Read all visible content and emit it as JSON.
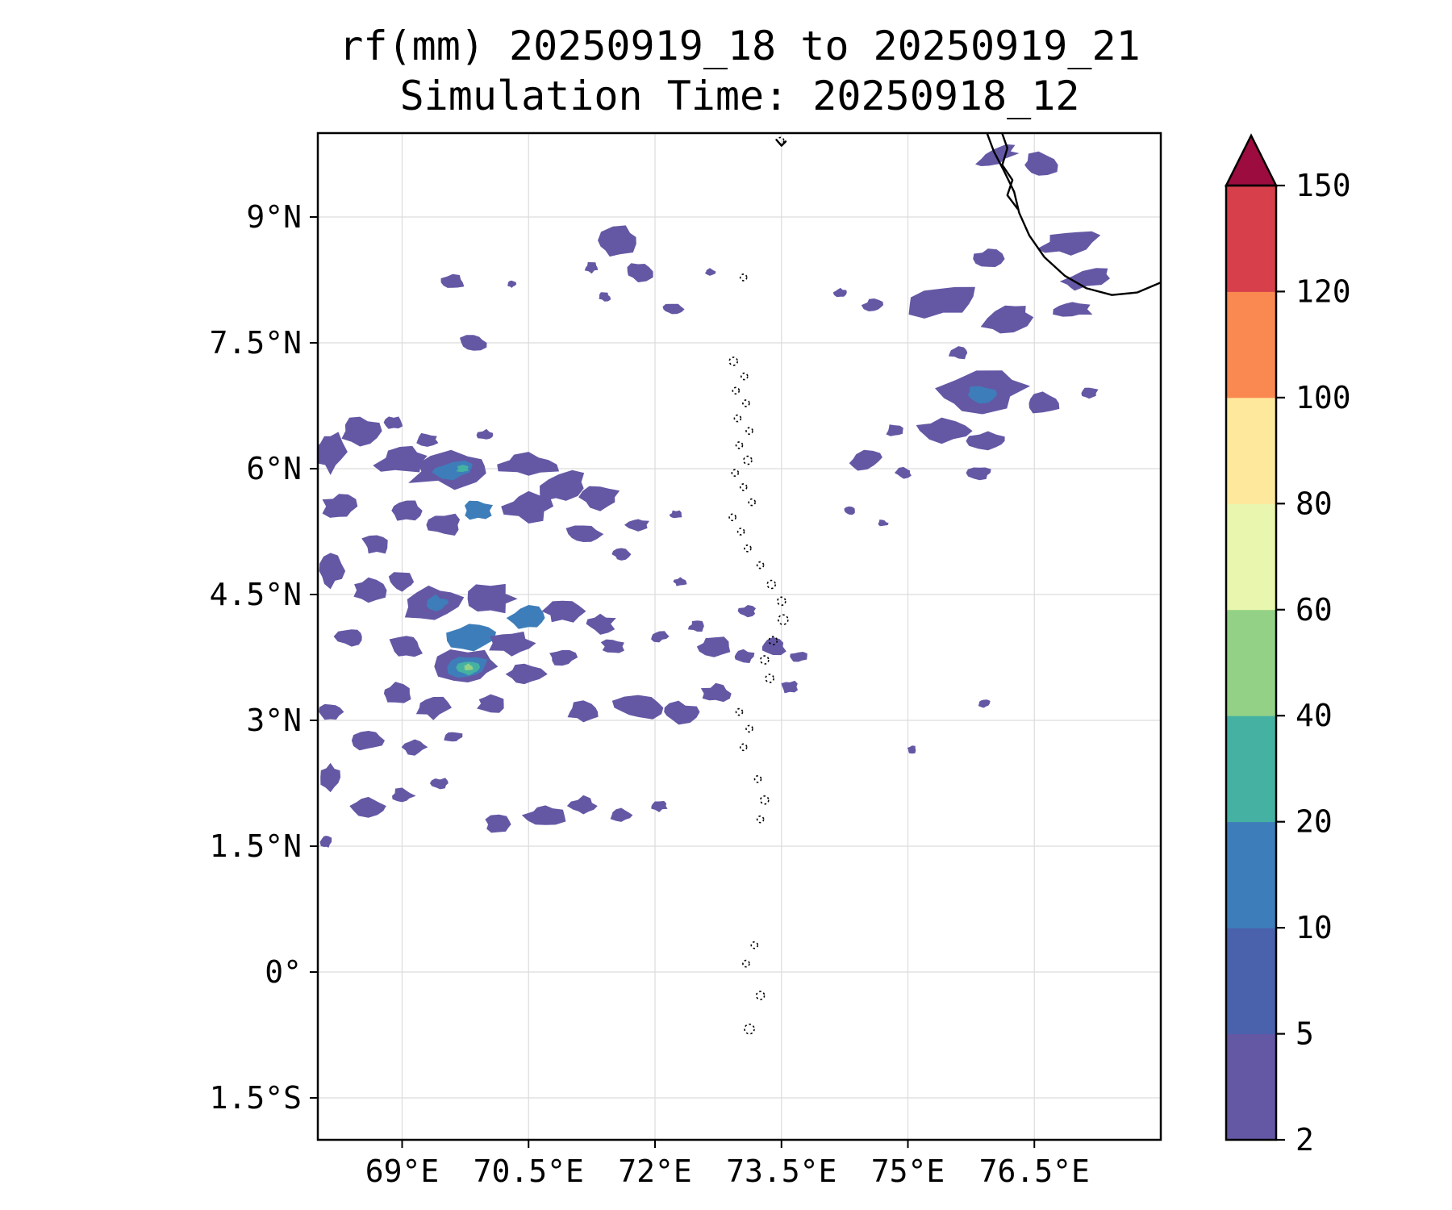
{
  "title_line1": "rf(mm) 20250919_18 to 20250919_21",
  "title_line2": "Simulation Time: 20250918_12",
  "chart_data": {
    "type": "heatmap",
    "variable": "rf",
    "units": "mm",
    "valid_period": "20250919_18 to 20250919_21",
    "simulation_time": "20250918_12",
    "grid": true,
    "x_axis": {
      "range": [
        68,
        78
      ],
      "ticks": [
        69,
        70.5,
        72,
        73.5,
        75,
        76.5
      ],
      "tick_labels": [
        "69°E",
        "70.5°E",
        "72°E",
        "73.5°E",
        "75°E",
        "76.5°E"
      ]
    },
    "y_axis": {
      "range": [
        -2,
        10
      ],
      "ticks": [
        9,
        7.5,
        6,
        4.5,
        3,
        1.5,
        0,
        -1.5
      ],
      "tick_labels": [
        "9°N",
        "7.5°N",
        "6°N",
        "4.5°N",
        "3°N",
        "1.5°N",
        "0°",
        "1.5°S"
      ]
    },
    "colorbar": {
      "levels": [
        2,
        5,
        10,
        20,
        40,
        60,
        80,
        100,
        120,
        150
      ],
      "tick_labels": [
        "2",
        "5",
        "10",
        "20",
        "40",
        "60",
        "80",
        "100",
        "120",
        "150"
      ],
      "colors": [
        "#6458a5",
        "#4a62ac",
        "#3d7eba",
        "#45b1a2",
        "#93d186",
        "#e9f6ae",
        "#fee89c",
        "#f98950",
        "#d7404b"
      ],
      "over_color": "#9c0c3f",
      "extend": "max",
      "position": "right"
    },
    "cell_format": "[lon_deg_E, lat_deg_N, rx_deg, ry_deg, rotation_deg, level_index]",
    "rain_cells": [
      [
        76.05,
        9.72,
        0.25,
        0.09,
        -20,
        0
      ],
      [
        76.55,
        9.62,
        0.2,
        0.13,
        0,
        0
      ],
      [
        76.9,
        8.7,
        0.33,
        0.13,
        -12,
        0
      ],
      [
        77.1,
        8.25,
        0.28,
        0.1,
        -15,
        0
      ],
      [
        75.95,
        8.5,
        0.17,
        0.11,
        0,
        0
      ],
      [
        75.4,
        8.0,
        0.4,
        0.18,
        -8,
        0
      ],
      [
        76.2,
        7.8,
        0.28,
        0.15,
        -18,
        0
      ],
      [
        76.95,
        7.9,
        0.22,
        0.1,
        0,
        0
      ],
      [
        74.6,
        7.95,
        0.12,
        0.08,
        0,
        0
      ],
      [
        74.2,
        8.1,
        0.07,
        0.05,
        0,
        0
      ],
      [
        75.85,
        6.9,
        0.5,
        0.22,
        -8,
        0
      ],
      [
        75.85,
        6.88,
        0.18,
        0.09,
        0,
        2
      ],
      [
        76.6,
        6.78,
        0.22,
        0.13,
        0,
        0
      ],
      [
        77.15,
        6.9,
        0.1,
        0.07,
        0,
        0
      ],
      [
        75.4,
        6.45,
        0.33,
        0.13,
        0,
        0
      ],
      [
        75.95,
        6.33,
        0.22,
        0.1,
        0,
        0
      ],
      [
        74.85,
        6.45,
        0.11,
        0.07,
        0,
        0
      ],
      [
        74.5,
        6.1,
        0.19,
        0.1,
        -10,
        0
      ],
      [
        74.95,
        5.95,
        0.1,
        0.06,
        0,
        0
      ],
      [
        75.85,
        5.95,
        0.13,
        0.07,
        0,
        0
      ],
      [
        74.3,
        5.5,
        0.07,
        0.05,
        0,
        0
      ],
      [
        74.7,
        5.35,
        0.06,
        0.04,
        0,
        0
      ],
      [
        75.6,
        7.38,
        0.12,
        0.07,
        0,
        0
      ],
      [
        71.55,
        8.7,
        0.25,
        0.16,
        -15,
        0
      ],
      [
        71.8,
        8.35,
        0.16,
        0.11,
        0,
        0
      ],
      [
        71.25,
        8.4,
        0.08,
        0.06,
        0,
        0
      ],
      [
        72.2,
        7.9,
        0.12,
        0.06,
        0,
        0
      ],
      [
        72.65,
        8.35,
        0.06,
        0.04,
        0,
        0
      ],
      [
        71.4,
        8.05,
        0.07,
        0.05,
        0,
        0
      ],
      [
        69.6,
        8.22,
        0.13,
        0.08,
        0,
        0
      ],
      [
        69.85,
        7.5,
        0.16,
        0.1,
        0,
        0
      ],
      [
        70.3,
        8.2,
        0.05,
        0.04,
        0,
        0
      ],
      [
        68.15,
        6.2,
        0.17,
        0.25,
        0,
        0
      ],
      [
        68.5,
        6.45,
        0.22,
        0.16,
        0,
        0
      ],
      [
        68.9,
        6.55,
        0.1,
        0.07,
        0,
        0
      ],
      [
        69.3,
        6.35,
        0.12,
        0.07,
        0,
        0
      ],
      [
        69.0,
        6.1,
        0.28,
        0.16,
        -10,
        0
      ],
      [
        69.6,
        6.0,
        0.5,
        0.2,
        -5,
        0
      ],
      [
        69.6,
        5.98,
        0.26,
        0.1,
        -5,
        2
      ],
      [
        69.72,
        6.0,
        0.07,
        0.05,
        0,
        3
      ],
      [
        70.5,
        6.05,
        0.33,
        0.13,
        0,
        0
      ],
      [
        70.0,
        6.4,
        0.1,
        0.06,
        0,
        0
      ],
      [
        70.9,
        5.78,
        0.28,
        0.16,
        -15,
        0
      ],
      [
        71.35,
        5.66,
        0.22,
        0.13,
        0,
        0
      ],
      [
        70.5,
        5.55,
        0.28,
        0.16,
        0,
        0
      ],
      [
        69.9,
        5.5,
        0.17,
        0.11,
        0,
        2
      ],
      [
        69.5,
        5.33,
        0.22,
        0.13,
        0,
        0
      ],
      [
        69.05,
        5.5,
        0.17,
        0.11,
        0,
        0
      ],
      [
        68.25,
        5.55,
        0.19,
        0.14,
        0,
        0
      ],
      [
        68.7,
        5.1,
        0.17,
        0.11,
        0,
        0
      ],
      [
        71.15,
        5.22,
        0.19,
        0.11,
        0,
        0
      ],
      [
        71.8,
        5.33,
        0.13,
        0.08,
        0,
        0
      ],
      [
        72.25,
        5.45,
        0.07,
        0.05,
        0,
        0
      ],
      [
        71.6,
        4.98,
        0.1,
        0.07,
        0,
        0
      ],
      [
        68.15,
        4.78,
        0.14,
        0.17,
        0,
        0
      ],
      [
        68.6,
        4.55,
        0.19,
        0.14,
        0,
        0
      ],
      [
        69.0,
        4.65,
        0.16,
        0.11,
        0,
        0
      ],
      [
        69.35,
        4.4,
        0.33,
        0.19,
        -10,
        0
      ],
      [
        69.4,
        4.4,
        0.14,
        0.08,
        0,
        2
      ],
      [
        70.05,
        4.45,
        0.28,
        0.16,
        0,
        0
      ],
      [
        70.5,
        4.22,
        0.22,
        0.14,
        0,
        2
      ],
      [
        70.9,
        4.3,
        0.22,
        0.13,
        0,
        0
      ],
      [
        71.35,
        4.15,
        0.17,
        0.11,
        0,
        0
      ],
      [
        69.82,
        4.0,
        0.28,
        0.16,
        -10,
        2
      ],
      [
        70.3,
        3.92,
        0.25,
        0.14,
        0,
        0
      ],
      [
        69.05,
        3.88,
        0.19,
        0.14,
        0,
        0
      ],
      [
        68.4,
        4.0,
        0.17,
        0.11,
        0,
        0
      ],
      [
        69.78,
        3.64,
        0.33,
        0.19,
        0,
        0
      ],
      [
        69.78,
        3.64,
        0.22,
        0.14,
        0,
        2
      ],
      [
        69.79,
        3.63,
        0.12,
        0.08,
        0,
        3
      ],
      [
        69.79,
        3.63,
        0.055,
        0.04,
        0,
        4
      ],
      [
        70.45,
        3.55,
        0.22,
        0.13,
        0,
        0
      ],
      [
        70.9,
        3.75,
        0.17,
        0.1,
        0,
        0
      ],
      [
        71.5,
        3.88,
        0.13,
        0.08,
        0,
        0
      ],
      [
        72.05,
        4.0,
        0.1,
        0.06,
        0,
        0
      ],
      [
        68.92,
        3.32,
        0.17,
        0.11,
        0,
        0
      ],
      [
        69.37,
        3.15,
        0.19,
        0.12,
        0,
        0
      ],
      [
        70.05,
        3.2,
        0.16,
        0.1,
        0,
        0
      ],
      [
        68.15,
        3.1,
        0.13,
        0.1,
        0,
        0
      ],
      [
        68.6,
        2.76,
        0.17,
        0.11,
        0,
        0
      ],
      [
        69.15,
        2.68,
        0.13,
        0.08,
        0,
        0
      ],
      [
        69.6,
        2.8,
        0.11,
        0.07,
        0,
        0
      ],
      [
        71.15,
        3.1,
        0.19,
        0.11,
        0,
        0
      ],
      [
        71.8,
        3.15,
        0.28,
        0.13,
        0,
        0
      ],
      [
        72.28,
        3.1,
        0.22,
        0.12,
        0,
        0
      ],
      [
        72.72,
        3.32,
        0.16,
        0.1,
        0,
        0
      ],
      [
        73.05,
        3.76,
        0.13,
        0.08,
        0,
        0
      ],
      [
        73.4,
        3.88,
        0.16,
        0.1,
        0,
        0
      ],
      [
        73.7,
        3.76,
        0.1,
        0.06,
        0,
        0
      ],
      [
        72.7,
        3.88,
        0.19,
        0.11,
        0,
        0
      ],
      [
        72.5,
        4.12,
        0.1,
        0.06,
        0,
        0
      ],
      [
        73.1,
        4.3,
        0.1,
        0.06,
        0,
        0
      ],
      [
        72.3,
        4.65,
        0.08,
        0.05,
        0,
        0
      ],
      [
        73.6,
        3.4,
        0.1,
        0.07,
        0,
        0
      ],
      [
        68.15,
        2.32,
        0.11,
        0.14,
        0,
        0
      ],
      [
        68.6,
        1.98,
        0.19,
        0.11,
        0,
        0
      ],
      [
        69.0,
        2.1,
        0.13,
        0.08,
        0,
        0
      ],
      [
        69.45,
        2.25,
        0.1,
        0.06,
        0,
        0
      ],
      [
        70.15,
        1.76,
        0.16,
        0.1,
        0,
        0
      ],
      [
        70.7,
        1.87,
        0.22,
        0.12,
        0,
        0
      ],
      [
        71.15,
        1.98,
        0.16,
        0.1,
        0,
        0
      ],
      [
        71.6,
        1.87,
        0.13,
        0.08,
        0,
        0
      ],
      [
        72.05,
        1.98,
        0.1,
        0.06,
        0,
        0
      ],
      [
        68.1,
        1.55,
        0.06,
        0.08,
        0,
        0
      ],
      [
        75.9,
        3.2,
        0.07,
        0.05,
        0,
        0
      ],
      [
        75.05,
        2.65,
        0.06,
        0.04,
        0,
        0
      ]
    ],
    "coastline": [
      [
        [
          75.92,
          10.05
        ],
        [
          76.02,
          9.78
        ],
        [
          76.14,
          9.55
        ],
        [
          76.26,
          9.3
        ],
        [
          76.32,
          9.05
        ],
        [
          76.44,
          8.78
        ],
        [
          76.62,
          8.52
        ],
        [
          76.86,
          8.3
        ],
        [
          77.12,
          8.15
        ],
        [
          77.42,
          8.07
        ],
        [
          77.72,
          8.1
        ],
        [
          78.05,
          8.24
        ]
      ],
      [
        [
          76.1,
          10.05
        ],
        [
          76.18,
          9.82
        ],
        [
          76.12,
          9.62
        ],
        [
          76.24,
          9.44
        ],
        [
          76.18,
          9.26
        ],
        [
          76.3,
          9.1
        ]
      ],
      [
        [
          73.44,
          9.92
        ],
        [
          73.5,
          9.85
        ],
        [
          73.55,
          9.9
        ]
      ]
    ],
    "islands": [
      [
        73.49,
        9.91,
        4
      ],
      [
        73.05,
        8.28,
        4
      ],
      [
        72.93,
        7.28,
        5
      ],
      [
        73.06,
        7.1,
        4
      ],
      [
        72.96,
        6.93,
        4
      ],
      [
        73.08,
        6.78,
        4
      ],
      [
        72.98,
        6.6,
        4
      ],
      [
        73.12,
        6.45,
        4
      ],
      [
        73.0,
        6.28,
        4
      ],
      [
        73.1,
        6.1,
        5
      ],
      [
        72.95,
        5.95,
        4
      ],
      [
        73.05,
        5.78,
        4
      ],
      [
        73.15,
        5.6,
        4
      ],
      [
        72.92,
        5.42,
        4
      ],
      [
        73.02,
        5.25,
        4
      ],
      [
        73.1,
        5.05,
        4
      ],
      [
        73.25,
        4.85,
        4
      ],
      [
        73.38,
        4.62,
        5
      ],
      [
        73.5,
        4.42,
        5
      ],
      [
        73.52,
        4.2,
        6
      ],
      [
        73.4,
        3.95,
        5
      ],
      [
        73.3,
        3.72,
        5
      ],
      [
        73.36,
        3.5,
        5
      ],
      [
        73.0,
        3.1,
        4
      ],
      [
        73.12,
        2.9,
        4
      ],
      [
        73.05,
        2.68,
        4
      ],
      [
        73.22,
        2.3,
        4
      ],
      [
        73.3,
        2.05,
        5
      ],
      [
        73.25,
        1.82,
        4
      ],
      [
        73.18,
        0.32,
        4
      ],
      [
        73.08,
        0.1,
        4
      ],
      [
        73.25,
        -0.28,
        5
      ],
      [
        73.12,
        -0.68,
        6
      ]
    ]
  }
}
